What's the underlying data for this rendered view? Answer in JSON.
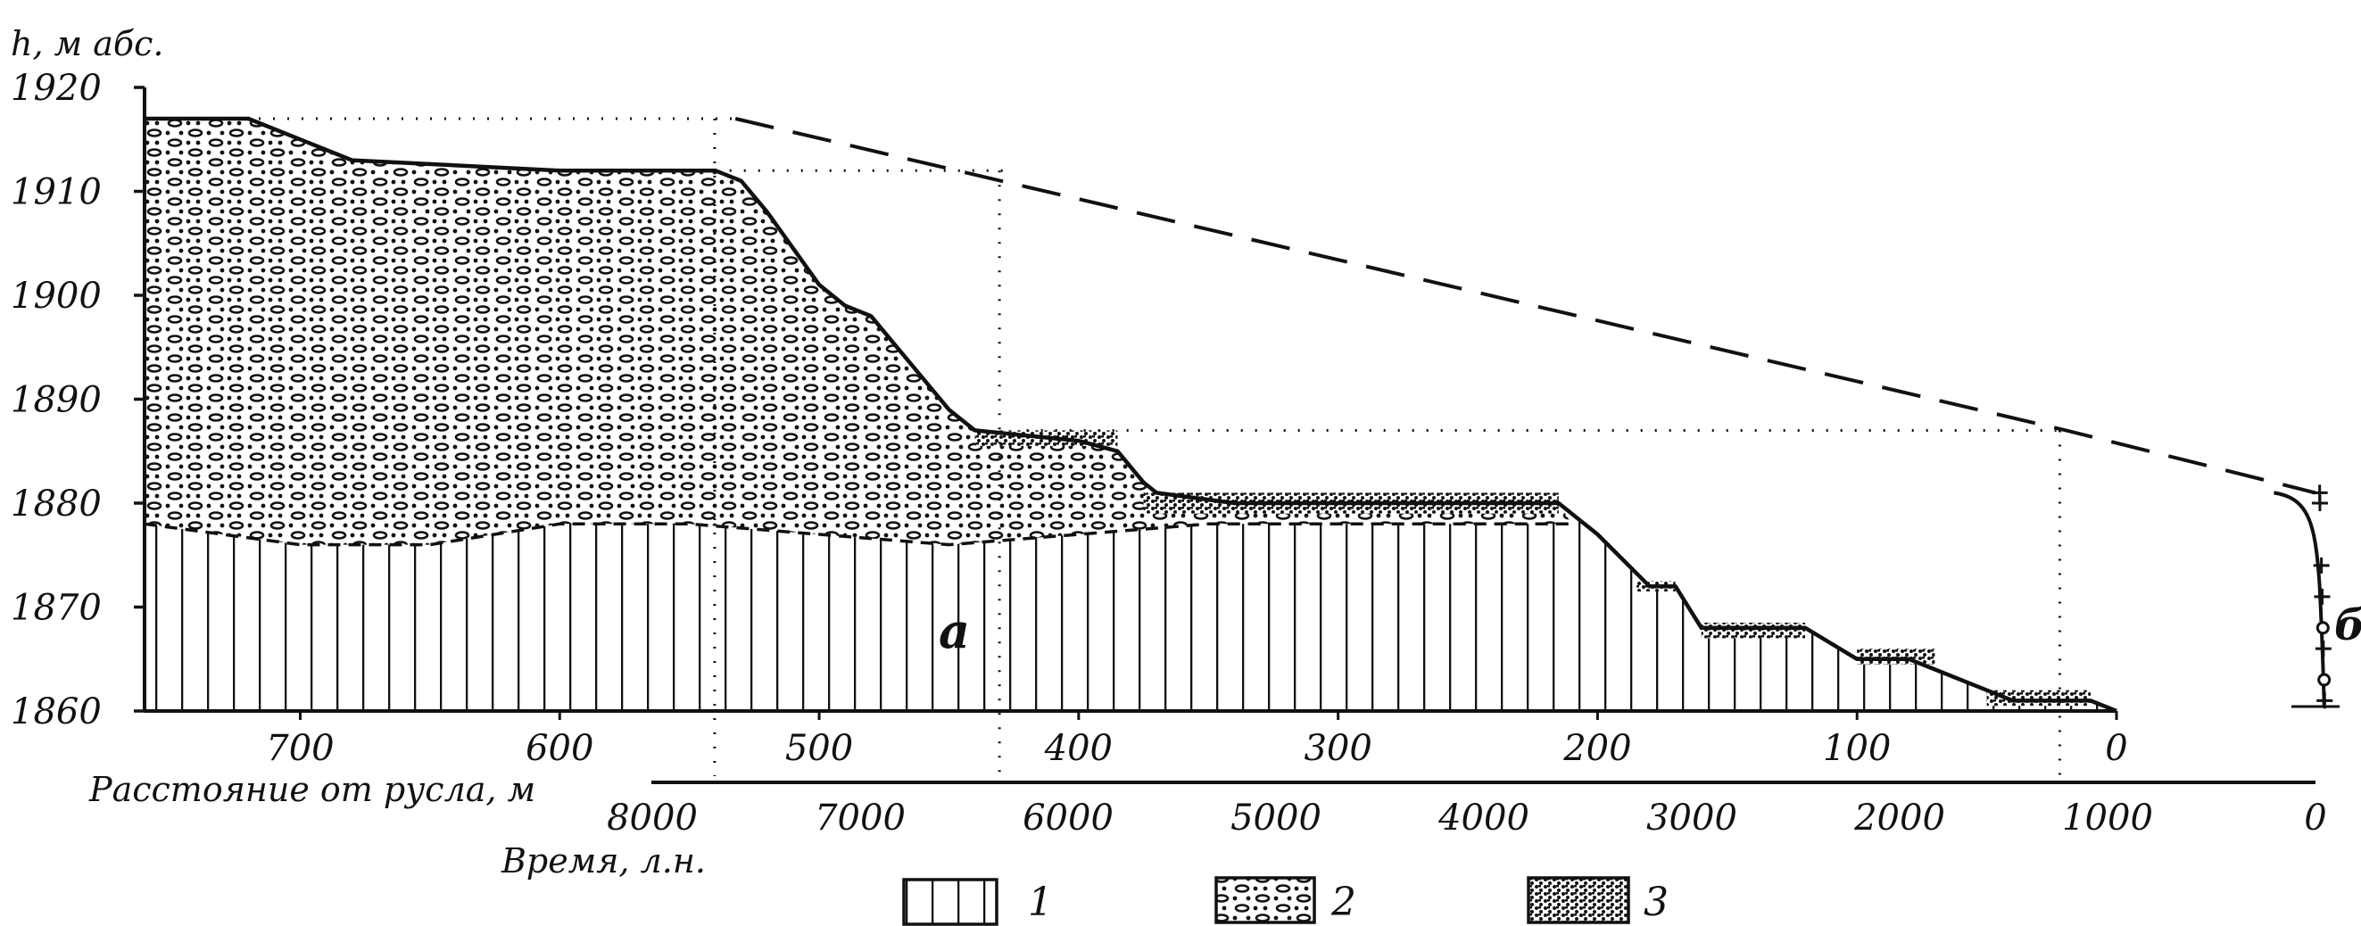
{
  "figure": {
    "y_axis_label": "h, м абс.",
    "x_axis_distance_label": "Расстояние от русла, м",
    "x_axis_time_label": "Время, л.н.",
    "label_a": "a",
    "label_b": "б"
  },
  "chart_data": {
    "type": "line",
    "y_ticks": [
      "1920",
      "1910",
      "1900",
      "1890",
      "1880",
      "1870",
      "1860"
    ],
    "distance_ticks": [
      "700",
      "600",
      "500",
      "400",
      "300",
      "200",
      "100",
      "0"
    ],
    "time_ticks": [
      "8000",
      "7000",
      "6000",
      "5000",
      "4000",
      "3000",
      "2000",
      "1000",
      "0"
    ],
    "ylim": [
      1860,
      1920
    ],
    "xlim_distance": [
      760,
      0
    ],
    "profile_surface": {
      "name": "",
      "distance": [
        760,
        720,
        700,
        680,
        600,
        540,
        530,
        520,
        500,
        490,
        480,
        470,
        450,
        440,
        400,
        385,
        375,
        370,
        340,
        300,
        250,
        215,
        200,
        180,
        170,
        160,
        140,
        120,
        100,
        90,
        80,
        70,
        50,
        40,
        10,
        0
      ],
      "h": [
        1917,
        1917,
        1915,
        1913,
        1912,
        1912,
        1911,
        1908,
        1901,
        1899,
        1898,
        1895,
        1889,
        1887,
        1886,
        1885,
        1882,
        1881,
        1880,
        1880,
        1880,
        1880,
        1877,
        1872,
        1872,
        1868,
        1868,
        1868,
        1865,
        1865,
        1865,
        1864,
        1862,
        1861,
        1861,
        1860
      ]
    },
    "bedrock_surface": {
      "name": "",
      "distance": [
        760,
        700,
        650,
        600,
        550,
        500,
        450,
        400,
        350,
        300,
        250,
        210
      ],
      "h": [
        1878,
        1876,
        1876,
        1878,
        1878,
        1877,
        1876,
        1877,
        1878,
        1878,
        1878,
        1878
      ]
    },
    "age_trend_line": {
      "name": "",
      "time": [
        7600,
        1200,
        0
      ],
      "h": [
        1917,
        1887,
        1881
      ]
    },
    "dotted_reference_levels": [
      1917,
      1912,
      1887
    ],
    "legend": [
      {
        "key": "1",
        "pattern": "vertical-hatch"
      },
      {
        "key": "2",
        "pattern": "pebbles"
      },
      {
        "key": "3",
        "pattern": "dense-stipple"
      }
    ]
  }
}
